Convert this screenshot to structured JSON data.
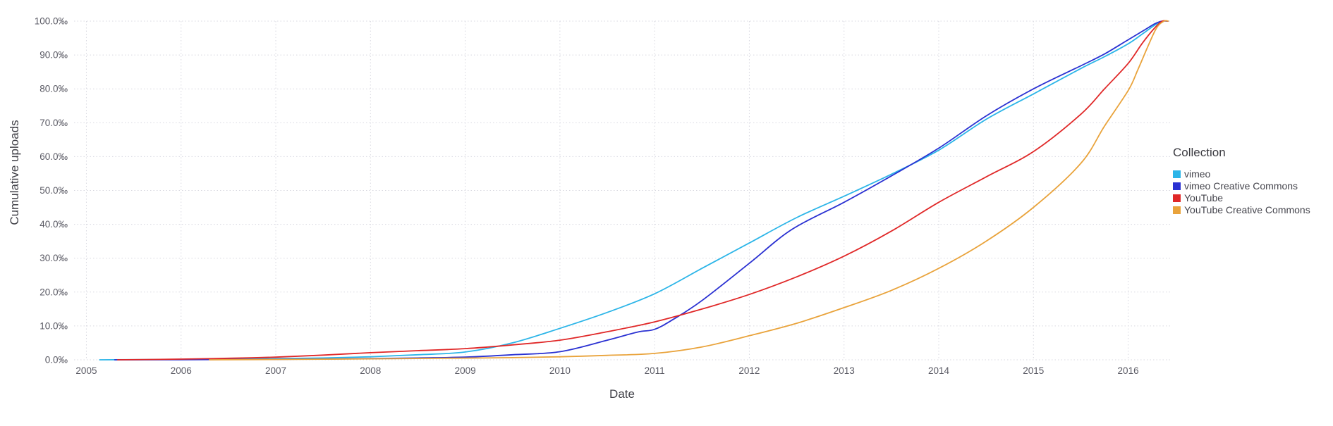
{
  "chart_data": {
    "type": "line",
    "title": "",
    "xlabel": "Date",
    "ylabel": "Cumulative uploads",
    "xlim": [
      2004.87,
      2016.45
    ],
    "ylim": [
      0,
      100
    ],
    "grid": "dotted",
    "x_ticks": [
      2005,
      2006,
      2007,
      2008,
      2009,
      2010,
      2011,
      2012,
      2013,
      2014,
      2015,
      2016
    ],
    "y_ticks": [
      0,
      10,
      20,
      30,
      40,
      50,
      60,
      70,
      80,
      90,
      100
    ],
    "y_tick_labels": [
      "0.0‰",
      "10.0‰",
      "20.0‰",
      "30.0‰",
      "40.0‰",
      "50.0‰",
      "60.0‰",
      "70.0‰",
      "80.0‰",
      "90.0‰",
      "100.0‰"
    ],
    "legend": {
      "title": "Collection",
      "position": "right"
    },
    "series": [
      {
        "name": "vimeo",
        "color": "#2cb5e8",
        "x": [
          2005.14,
          2005.5,
          2006,
          2006.5,
          2007,
          2007.5,
          2008,
          2008.5,
          2009,
          2009.5,
          2010,
          2010.5,
          2011,
          2011.5,
          2012,
          2012.5,
          2013,
          2013.5,
          2014,
          2014.5,
          2015,
          2015.5,
          2015.75,
          2016,
          2016.15,
          2016.28,
          2016.36,
          2016.42
        ],
        "y": [
          0,
          0.05,
          0.1,
          0.2,
          0.35,
          0.55,
          0.9,
          1.5,
          2.3,
          5,
          9.3,
          14,
          19.5,
          27,
          34.5,
          42,
          48.3,
          54.8,
          61.9,
          71,
          78.5,
          86,
          89.5,
          93.3,
          96.2,
          98.8,
          100,
          100
        ]
      },
      {
        "name": "vimeo Creative Commons",
        "color": "#2a31d2",
        "x": [
          2005.3,
          2006,
          2007,
          2008,
          2008.5,
          2009,
          2009.5,
          2010,
          2010.5,
          2010.82,
          2011,
          2011.2,
          2011.5,
          2012,
          2012.45,
          2013,
          2013.5,
          2014,
          2014.5,
          2015,
          2015.5,
          2015.75,
          2016,
          2016.15,
          2016.28,
          2016.36,
          2016.42
        ],
        "y": [
          0,
          0.05,
          0.15,
          0.35,
          0.55,
          0.8,
          1.5,
          2.4,
          5.8,
          8.2,
          9,
          12,
          17.5,
          28.5,
          38.5,
          46.5,
          54.3,
          62.5,
          72,
          80,
          86.8,
          90.3,
          94.5,
          97,
          99.2,
          100,
          100
        ]
      },
      {
        "name": "YouTube",
        "color": "#e02828",
        "x": [
          2005.33,
          2006,
          2006.5,
          2007,
          2007.5,
          2008,
          2008.5,
          2009,
          2009.5,
          2010,
          2010.5,
          2011,
          2011.5,
          2012,
          2012.5,
          2013,
          2013.5,
          2014,
          2014.5,
          2015,
          2015.5,
          2015.75,
          2016,
          2016.15,
          2016.28,
          2016.36,
          2016.42
        ],
        "y": [
          0,
          0.2,
          0.45,
          0.8,
          1.4,
          2.1,
          2.7,
          3.3,
          4.4,
          5.8,
          8.3,
          11.2,
          15,
          19.3,
          24.5,
          30.6,
          38,
          46.5,
          54,
          61.5,
          72.5,
          80,
          87.5,
          93.5,
          98,
          100,
          100
        ]
      },
      {
        "name": "YouTube Creative Commons",
        "color": "#e9a33b",
        "x": [
          2006.3,
          2007,
          2008,
          2009,
          2009.5,
          2010,
          2010.5,
          2011,
          2011.5,
          2012,
          2012.5,
          2013,
          2013.5,
          2014,
          2014.5,
          2015,
          2015.5,
          2015.75,
          2016,
          2016.1,
          2016.2,
          2016.3,
          2016.38,
          2016.42
        ],
        "y": [
          0,
          0.1,
          0.3,
          0.5,
          0.65,
          0.9,
          1.3,
          1.9,
          3.8,
          7.1,
          10.8,
          15.4,
          20.5,
          27,
          35,
          45,
          58,
          69,
          79.5,
          85.5,
          92,
          98,
          100,
          100
        ]
      }
    ],
    "colors": {
      "grid": "#d8d8e0",
      "tick_text": "#5a5a64",
      "axis_title_text": "#3f3f46",
      "background": "#ffffff"
    }
  }
}
